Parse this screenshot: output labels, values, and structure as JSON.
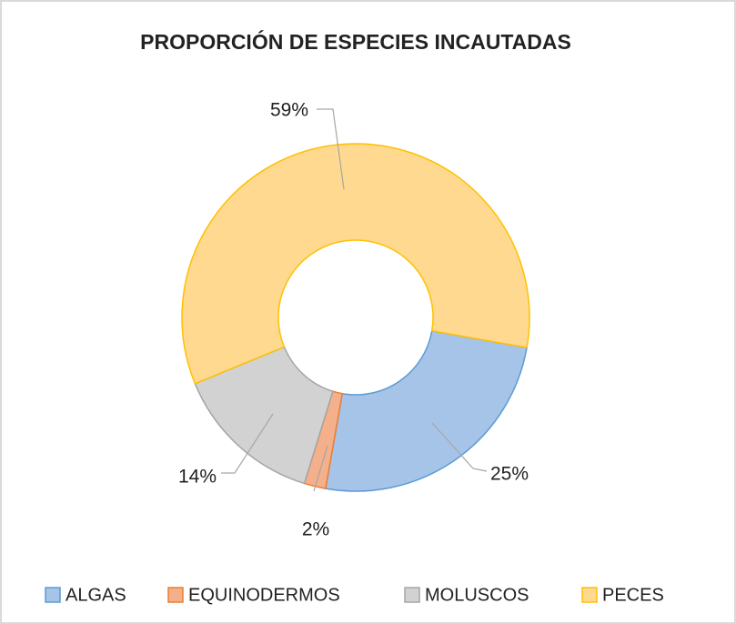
{
  "chart_data": {
    "type": "doughnut",
    "title": "PROPORCIÓN DE ESPECIES INCAUTADAS",
    "categories": [
      "ALGAS",
      "EQUINODERMOS",
      "MOLUSCOS",
      "PECES"
    ],
    "values": [
      25,
      2,
      14,
      59
    ],
    "value_labels": [
      "25%",
      "2%",
      "14%",
      "59%"
    ],
    "colors": [
      "#a6c4e8",
      "#f4b08a",
      "#d2d2d2",
      "#ffd98f"
    ],
    "legend": "bottom"
  }
}
